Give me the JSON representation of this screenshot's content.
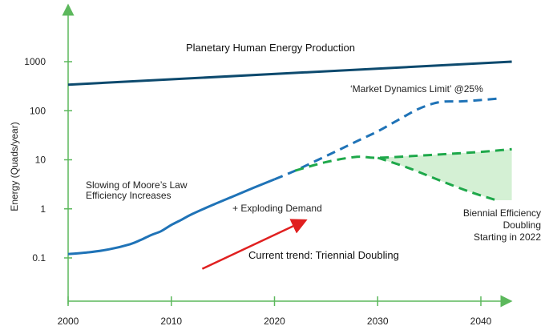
{
  "chart_data": {
    "type": "line",
    "title": "",
    "xlabel": "",
    "ylabel": "Energy (Quads/year)",
    "yscale": "log",
    "xlim": [
      2000,
      2043
    ],
    "ylim": [
      0.05,
      1500
    ],
    "x_ticks": [
      "2000",
      "2010",
      "2020",
      "2030",
      "2040"
    ],
    "y_ticks": [
      "0.1",
      "1",
      "10",
      "100",
      "1000"
    ],
    "grid": false,
    "colors": {
      "axis": "#5cb85c",
      "planetary": "#0d4a6e",
      "demand": "#1f73b7",
      "efficiency": "#1ea84a",
      "efficiency_fill": "#d4f0d4",
      "trend_arrow": "#e02020"
    },
    "series": [
      {
        "name": "Planetary Human Energy Production",
        "style": "solid",
        "x": [
          2000,
          2043
        ],
        "y": [
          340,
          1000
        ]
      },
      {
        "name": "",
        "style": "solid",
        "x": [
          2000,
          2002,
          2004,
          2006,
          2007,
          2008,
          2009,
          2010,
          2011,
          2012,
          2014,
          2016,
          2018,
          2020
        ],
        "y": [
          0.12,
          0.13,
          0.15,
          0.19,
          0.23,
          0.29,
          0.35,
          0.47,
          0.6,
          0.78,
          1.2,
          1.8,
          2.7,
          4.0
        ]
      },
      {
        "name": "",
        "style": "dashed",
        "x": [
          2020,
          2022,
          2024,
          2026,
          2028,
          2030,
          2032,
          2034,
          2036,
          2038,
          2040,
          2042
        ],
        "y": [
          4.0,
          6.0,
          9.5,
          15,
          24,
          38,
          65,
          110,
          150,
          155,
          165,
          180
        ]
      },
      {
        "name": "",
        "style": "dashed",
        "x": [
          2022,
          2025,
          2028,
          2030,
          2035,
          2040,
          2043
        ],
        "y": [
          6.0,
          9.0,
          11.5,
          11,
          12.5,
          14.5,
          16.5
        ]
      },
      {
        "name": "",
        "style": "dashed",
        "x": [
          2030,
          2033,
          2036,
          2039,
          2041.5
        ],
        "y": [
          11,
          6.8,
          3.8,
          2.2,
          1.5
        ]
      }
    ],
    "shaded_region": {
      "x": [
        2030,
        2035,
        2040,
        2043,
        2043,
        2041.5,
        2039,
        2036,
        2033,
        2030
      ],
      "y": [
        11,
        12.5,
        14.5,
        16.5,
        1.5,
        1.5,
        2.2,
        3.8,
        6.8,
        11
      ]
    },
    "arrow": {
      "from": [
        2013,
        0.06
      ],
      "to": [
        2022.5,
        0.52
      ]
    },
    "annotations": {
      "planetary": "Planetary Human Energy Production",
      "market_limit": "‘Market Dynamics Limit’ @25%",
      "moores_1": "Slowing of Moore’s Law",
      "moores_2": "Efficiency Increases",
      "exploding": "+ Exploding Demand",
      "trend": "Current trend: Triennial Doubling",
      "biennial_1": "Biennial Efficiency",
      "biennial_2": "Doubling",
      "biennial_3": "Starting in 2022"
    }
  }
}
